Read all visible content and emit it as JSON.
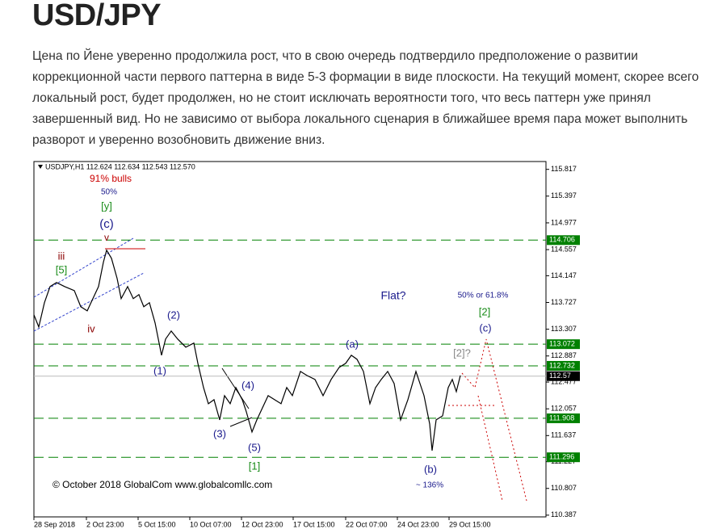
{
  "header": {
    "title": "USD/JPY"
  },
  "paragraph": "Цена по Йене уверенно продолжила рост, что в свою очередь подтвердило предположение о развитии коррекционной части первого паттерна в виде 5-3 формации в виде плоскости. На текущий момент, скорее всего локальный рост, будет продолжен, но не стоит  исключать вероятности того, что весь паттерн уже принял завершенный вид. Но не зависимо от выбора локального сценария в ближайшее время пара может выполнить разворот и уверенно возобновить движение вниз.",
  "chart_data": {
    "type": "line",
    "xlim": [
      0,
      634
    ],
    "ylim": [
      110.36,
      115.94
    ],
    "xticks": [
      {
        "value": 0,
        "label": "28 Sep 2018"
      },
      {
        "value": 65,
        "label": "2 Oct 23:00"
      },
      {
        "value": 129,
        "label": "5 Oct 15:00"
      },
      {
        "value": 193,
        "label": "10 Oct 07:00"
      },
      {
        "value": 257,
        "label": "12 Oct 23:00"
      },
      {
        "value": 321,
        "label": "17 Oct 15:00"
      },
      {
        "value": 386,
        "label": "22 Oct 07:00"
      },
      {
        "value": 450,
        "label": "24 Oct 23:00"
      },
      {
        "value": 514,
        "label": "29 Oct 15:00"
      }
    ],
    "yticks": [
      115.817,
      115.397,
      114.977,
      114.557,
      114.147,
      113.727,
      113.307,
      112.887,
      112.477,
      112.057,
      111.637,
      111.227,
      110.807,
      110.387
    ],
    "levels": [
      114.706,
      113.072,
      112.732,
      111.908,
      111.296
    ],
    "level_color": "#008000",
    "last_price": 112.57,
    "series": [
      {
        "name": "USDJPY,H1",
        "color": "#000000",
        "x": [
          0,
          6,
          13,
          20,
          28,
          38,
          50,
          58,
          66,
          73,
          80,
          86,
          90,
          96,
          103,
          108,
          116,
          123,
          130,
          136,
          143,
          150,
          158,
          163,
          170,
          178,
          188,
          198,
          203,
          210,
          216,
          223,
          230,
          236,
          243,
          250,
          258,
          263,
          270,
          276,
          283,
          290,
          298,
          306,
          313,
          320,
          330,
          338,
          348,
          358,
          368,
          378,
          386,
          393,
          400,
          408,
          416,
          423,
          430,
          438,
          446,
          454,
          463,
          473,
          483,
          490,
          493,
          498,
          506,
          513,
          518,
          523,
          528
        ],
        "values": [
          113.533,
          113.342,
          113.723,
          113.977,
          114.04,
          113.977,
          113.913,
          113.66,
          113.596,
          113.787,
          113.977,
          114.358,
          114.548,
          114.421,
          114.104,
          113.787,
          113.977,
          113.787,
          113.85,
          113.66,
          113.723,
          113.406,
          112.898,
          113.152,
          113.279,
          113.152,
          113.025,
          113.089,
          112.771,
          112.391,
          112.137,
          112.2,
          111.883,
          112.264,
          112.137,
          112.391,
          112.2,
          112.01,
          111.693,
          111.883,
          112.073,
          112.264,
          112.2,
          112.137,
          112.391,
          112.264,
          112.644,
          112.581,
          112.518,
          112.264,
          112.518,
          112.708,
          112.771,
          112.898,
          112.835,
          112.644,
          112.137,
          112.391,
          112.518,
          112.644,
          112.454,
          111.883,
          112.2,
          112.644,
          112.264,
          111.82,
          111.401,
          111.883,
          111.946,
          112.391,
          112.518,
          112.327,
          112.581
        ]
      }
    ],
    "annotations": [
      {
        "text": "USDJPY,H1  112.624 112.634 112.543 112.570",
        "color": "#000000"
      },
      {
        "text": "91% bulls",
        "color": "#cc0000"
      },
      {
        "text": "50%",
        "color": "#1a1a8c"
      },
      {
        "text": "[y]",
        "color": "#1a8c1a"
      },
      {
        "text": "(c)",
        "color": "#1a1a8c"
      },
      {
        "text": "v",
        "color": "#8b0000"
      },
      {
        "text": "iii",
        "color": "#8b0000"
      },
      {
        "text": "[5]",
        "color": "#1a8c1a"
      },
      {
        "text": "iv",
        "color": "#8b0000"
      },
      {
        "text": "(2)",
        "color": "#1a1a8c"
      },
      {
        "text": "(1)",
        "color": "#1a1a8c"
      },
      {
        "text": "(4)",
        "color": "#1a1a8c"
      },
      {
        "text": "(3)",
        "color": "#1a1a8c"
      },
      {
        "text": "(5)",
        "color": "#1a1a8c"
      },
      {
        "text": "[1]",
        "color": "#1a8c1a"
      },
      {
        "text": "Flat?",
        "color": "#1a1a8c"
      },
      {
        "text": "50% or 61.8%",
        "color": "#1a1a8c"
      },
      {
        "text": "[2]",
        "color": "#1a8c1a"
      },
      {
        "text": "(c)",
        "color": "#1a1a8c"
      },
      {
        "text": "(a)",
        "color": "#1a1a8c"
      },
      {
        "text": "[2]?",
        "color": "#888888"
      },
      {
        "text": "(b)",
        "color": "#1a1a8c"
      },
      {
        "text": "~ 136%",
        "color": "#1a1a8c"
      },
      {
        "text": "© October 2018 GlobalCom www.globalcomllc.com",
        "color": "#000000"
      }
    ]
  }
}
